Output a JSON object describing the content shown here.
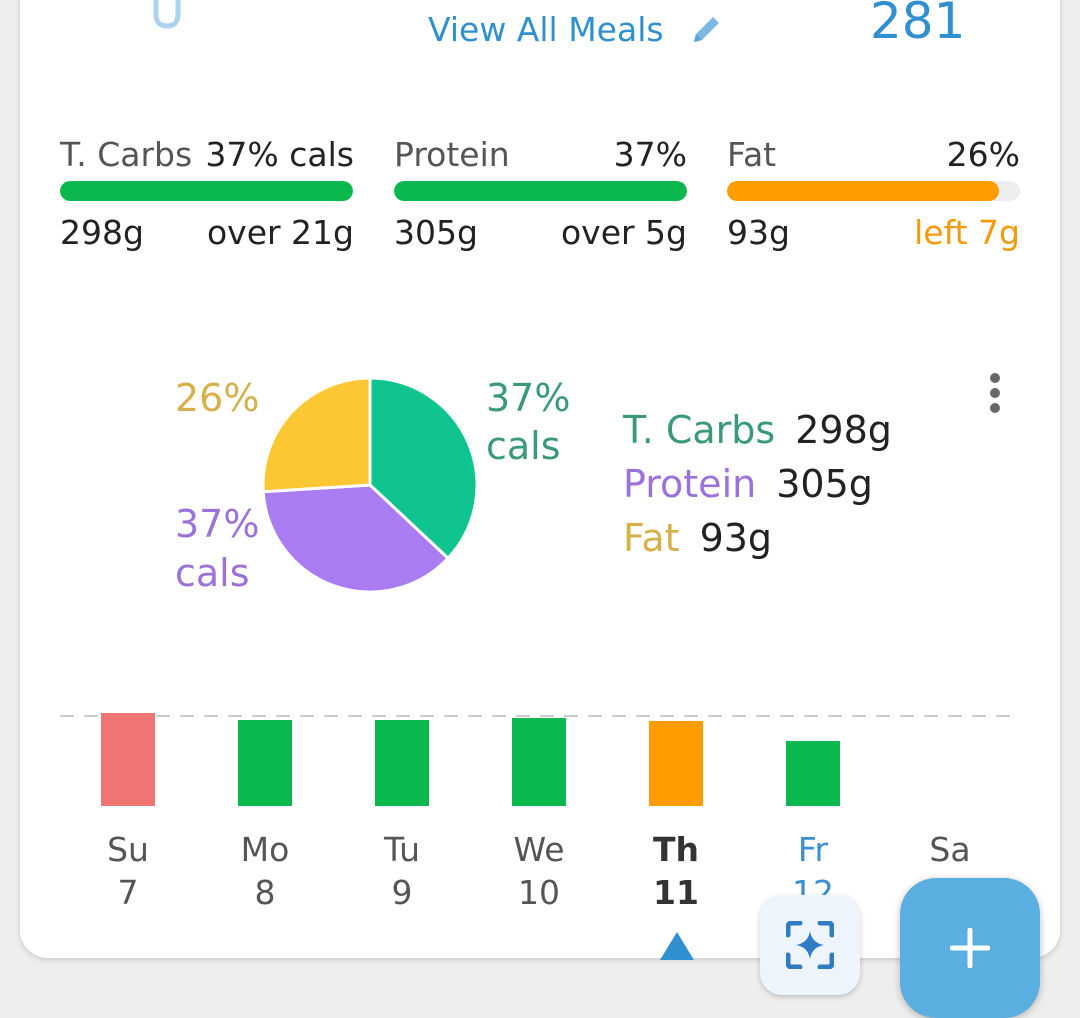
{
  "header": {
    "view_all_meals_label": "View All Meals",
    "calories_value": "281"
  },
  "macros": [
    {
      "name": "T. Carbs",
      "percent": "37% cals",
      "grams": "298g",
      "status": "over 21g",
      "fill_fraction": 1.0,
      "color": "#0bb84d",
      "status_color": "#222222"
    },
    {
      "name": "Protein",
      "percent": "37%",
      "grams": "305g",
      "status": "over 5g",
      "fill_fraction": 1.0,
      "color": "#0bb84d",
      "status_color": "#222222"
    },
    {
      "name": "Fat",
      "percent": "26%",
      "grams": "93g",
      "status": "left 7g",
      "fill_fraction": 0.93,
      "color": "#ff9c00",
      "status_color": "#f39a0b"
    }
  ],
  "pie": {
    "slices": [
      {
        "name": "T. Carbs",
        "value": 37,
        "color": "#10c48f"
      },
      {
        "name": "Protein",
        "value": 37,
        "color": "#a97cf2"
      },
      {
        "name": "Fat",
        "value": 26,
        "color": "#fdc734"
      }
    ],
    "labels": {
      "carbs_line1": "37%",
      "carbs_line2": "cals",
      "protein_line1": "37%",
      "protein_line2": "cals",
      "fat_line1": "26%"
    },
    "label_colors": {
      "carbs": "#3a9a78",
      "protein": "#9b72d9",
      "fat": "#d6b04a"
    }
  },
  "legend": [
    {
      "name": "T. Carbs",
      "value": "298g",
      "color": "#3a9a78"
    },
    {
      "name": "Protein",
      "value": "305g",
      "color": "#9b72d9"
    },
    {
      "name": "Fat",
      "value": "93g",
      "color": "#d6b04a"
    }
  ],
  "week": {
    "days": [
      {
        "abbr": "Su",
        "num": "7",
        "level": 1.08,
        "color": "#ef7474"
      },
      {
        "abbr": "Mo",
        "num": "8",
        "level": 1.0,
        "color": "#0bb84d"
      },
      {
        "abbr": "Tu",
        "num": "9",
        "level": 1.0,
        "color": "#0bb84d"
      },
      {
        "abbr": "We",
        "num": "10",
        "level": 1.02,
        "color": "#0bb84d"
      },
      {
        "abbr": "Th",
        "num": "11",
        "level": 0.99,
        "color": "#ff9c00"
      },
      {
        "abbr": "Fr",
        "num": "12",
        "level": 0.76,
        "color": "#0bb84d"
      },
      {
        "abbr": "Sa",
        "num": "",
        "level": 0,
        "color": "#0bb84d"
      }
    ],
    "selected_day": "Th"
  },
  "buttons": {
    "scan_icon": "sparkle-scan-icon",
    "add_icon": "plus-icon"
  }
}
